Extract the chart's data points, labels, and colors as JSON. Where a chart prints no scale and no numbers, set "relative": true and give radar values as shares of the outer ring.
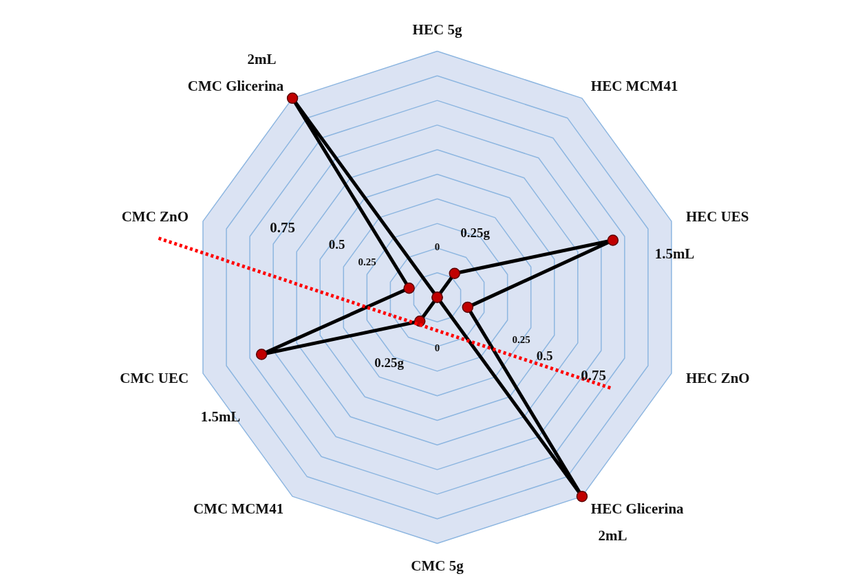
{
  "chart_data": {
    "type": "radar",
    "relative": true,
    "grid": true,
    "marker": "circle",
    "line_style": "solid",
    "categories": [
      "HEC 5g",
      "HEC MCM41",
      "HEC UES",
      "HEC ZnO",
      "HEC Glicerina",
      "CMC 5g",
      "CMC MCM41",
      "CMC UEC",
      "CMC ZnO",
      "CMC Glicerina"
    ],
    "series": [
      {
        "color": "#000000",
        "values": [
          0,
          0.12,
          0.75,
          0.13,
          1,
          0,
          0.12,
          0.75,
          0.12,
          1
        ]
      }
    ],
    "annotations": [
      "2mL",
      "1.5mL",
      "2mL",
      "1.5mL",
      "0",
      "0.25g",
      "0",
      "0.25g",
      "0.25",
      "0.5",
      "0.75",
      "0.25",
      "0.5",
      "0.75"
    ]
  }
}
